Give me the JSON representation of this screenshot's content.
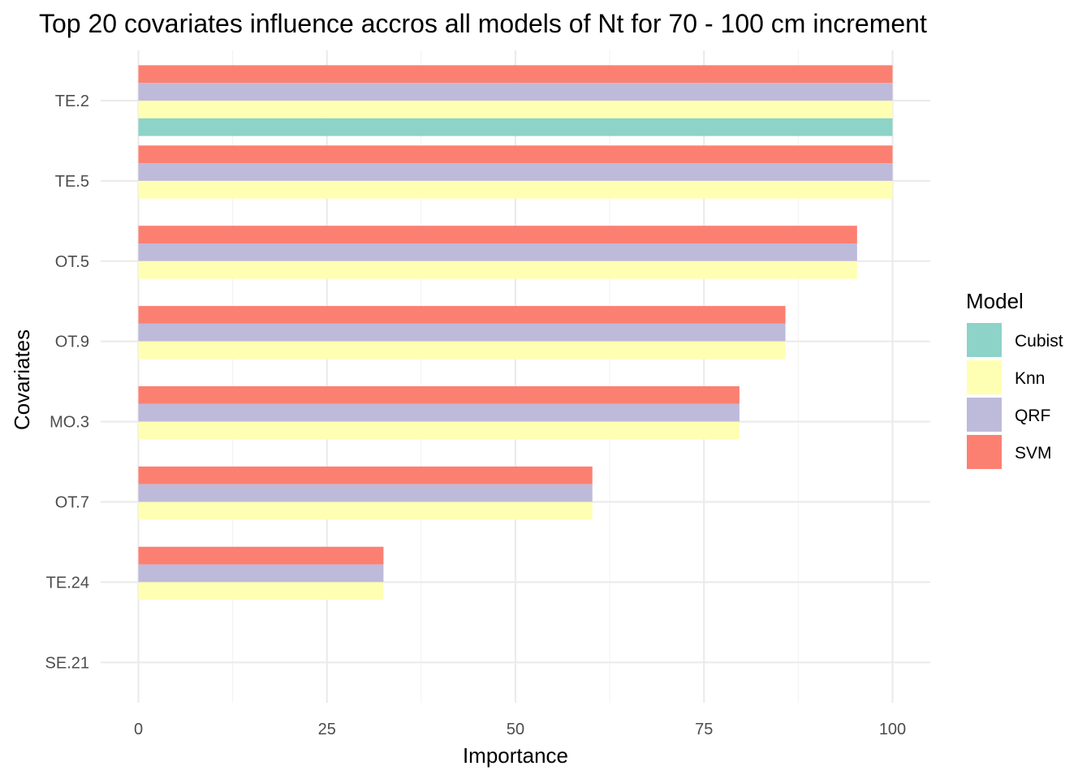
{
  "chart_data": {
    "type": "bar",
    "orientation": "horizontal",
    "title": "Top 20 covariates influence accros all models of Nt for 70 - 100 cm increment",
    "xlabel": "Importance",
    "ylabel": "Covariates",
    "xlim": [
      0,
      100
    ],
    "x_ticks": [
      "0",
      "25",
      "50",
      "75",
      "100"
    ],
    "grid": true,
    "categories": [
      "TE.2",
      "TE.5",
      "OT.5",
      "OT.9",
      "MO.3",
      "OT.7",
      "TE.24",
      "SE.21"
    ],
    "series": [
      {
        "name": "Cubist",
        "color": "#8DD3C7",
        "values": [
          100,
          null,
          null,
          null,
          null,
          null,
          null,
          null
        ]
      },
      {
        "name": "Knn",
        "color": "#FFFFB3",
        "values": [
          100,
          100,
          95.3,
          85.8,
          79.7,
          60.2,
          32.5,
          0
        ]
      },
      {
        "name": "QRF",
        "color": "#BEBADA",
        "values": [
          100,
          100,
          95.3,
          85.8,
          79.7,
          60.2,
          32.5,
          0
        ]
      },
      {
        "name": "SVM",
        "color": "#FB8072",
        "values": [
          100,
          100,
          95.3,
          85.8,
          79.7,
          60.2,
          32.5,
          0
        ]
      }
    ],
    "legend": {
      "title": "Model",
      "position": "right"
    }
  }
}
